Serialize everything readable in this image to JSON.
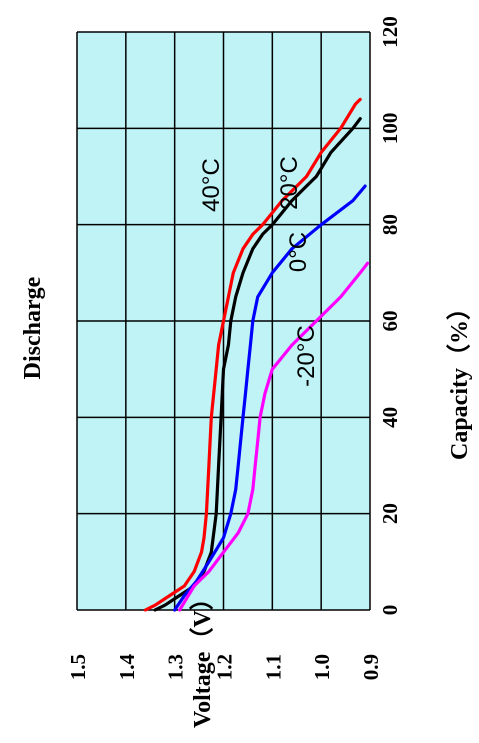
{
  "chart_data": {
    "type": "line",
    "title": "Discharge",
    "xlabel": "Capacity（%）",
    "ylabel": "Voltage（V）",
    "xlim": [
      0,
      120
    ],
    "ylim": [
      0.9,
      1.5
    ],
    "x_ticks": [
      "0",
      "20",
      "40",
      "60",
      "80",
      "100",
      "120"
    ],
    "y_ticks": [
      "1.5",
      "1.4",
      "1.3",
      "1.2",
      "1.1",
      "1.0",
      "0.9"
    ],
    "grid": true,
    "orientation": "rotated-90-counterclockwise",
    "colors": {
      "plot_background": "#bff3f6",
      "grid": "#000000"
    },
    "series": [
      {
        "name": "40°C",
        "color": "#ff0000",
        "x": [
          0,
          1,
          3,
          5,
          8,
          12,
          15,
          20,
          30,
          40,
          50,
          55,
          60,
          65,
          70,
          75,
          78,
          80,
          85,
          90,
          95,
          100,
          105,
          106
        ],
        "y": [
          1.36,
          1.34,
          1.31,
          1.28,
          1.26,
          1.245,
          1.24,
          1.235,
          1.23,
          1.225,
          1.215,
          1.21,
          1.2,
          1.19,
          1.18,
          1.16,
          1.14,
          1.12,
          1.08,
          1.03,
          1.0,
          0.96,
          0.93,
          0.92
        ]
      },
      {
        "name": "",
        "color": "#000000",
        "x": [
          0,
          1,
          3,
          5,
          8,
          12,
          20,
          30,
          40,
          50,
          55,
          60,
          65,
          70,
          75,
          78,
          80,
          85,
          88,
          90,
          95,
          100,
          102
        ],
        "y": [
          1.34,
          1.32,
          1.29,
          1.26,
          1.24,
          1.225,
          1.215,
          1.21,
          1.205,
          1.2,
          1.19,
          1.185,
          1.175,
          1.16,
          1.14,
          1.12,
          1.1,
          1.06,
          1.03,
          1.01,
          0.98,
          0.935,
          0.92
        ]
      },
      {
        "name": "20°C",
        "color": "#0000ff",
        "x": [
          0,
          3,
          6,
          10,
          15,
          20,
          25,
          30,
          35,
          40,
          45,
          50,
          55,
          60,
          65,
          70,
          75,
          80,
          85,
          88
        ],
        "y": [
          1.3,
          1.28,
          1.255,
          1.23,
          1.2,
          1.185,
          1.175,
          1.17,
          1.165,
          1.16,
          1.155,
          1.15,
          1.145,
          1.14,
          1.13,
          1.1,
          1.06,
          1.0,
          0.935,
          0.91
        ]
      },
      {
        "name": "0°C",
        "color": "#ff00ff",
        "x": [
          0,
          5,
          8,
          12,
          16,
          20,
          25,
          30,
          35,
          40,
          45,
          50,
          55,
          60,
          65,
          70,
          72
        ],
        "y": [
          1.29,
          1.26,
          1.23,
          1.2,
          1.17,
          1.15,
          1.14,
          1.135,
          1.13,
          1.125,
          1.115,
          1.1,
          1.06,
          1.01,
          0.96,
          0.92,
          0.905
        ]
      }
    ],
    "annotations": [
      "40°C",
      "20°C",
      "0°C",
      "-20°C"
    ]
  }
}
